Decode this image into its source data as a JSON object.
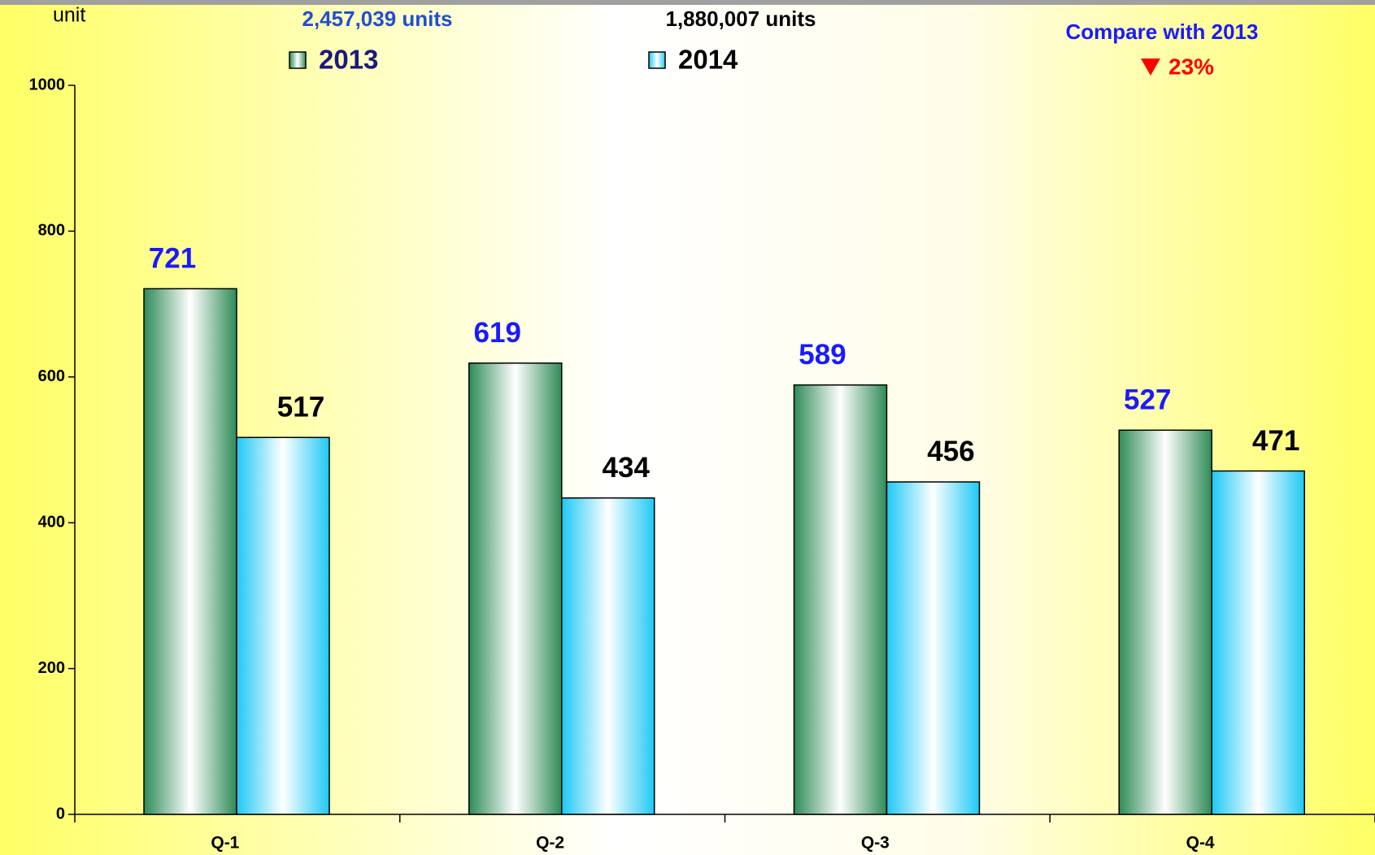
{
  "chart_data": {
    "type": "bar",
    "y_axis_label": "unit",
    "categories": [
      "Q-1",
      "Q-2",
      "Q-3",
      "Q-4"
    ],
    "series": [
      {
        "name": "2013",
        "color": "#2e8b57",
        "label_color": "#1a1aff",
        "total_label": "2,457,039 units",
        "total_color": "#1f4fd0",
        "values": [
          721,
          619,
          589,
          527
        ]
      },
      {
        "name": "2014",
        "color": "#1ec8f5",
        "label_color": "#000000",
        "total_label": "1,880,007 units",
        "total_color": "#000000",
        "values": [
          517,
          434,
          456,
          471
        ]
      }
    ],
    "comparison": {
      "text": "Compare with  2013",
      "change": {
        "value": 23,
        "label": "23%"
      },
      "direction": "down"
    },
    "ylim": [
      0,
      1000
    ],
    "yticks": [
      0,
      200,
      400,
      600,
      800,
      1000
    ],
    "grid": false
  }
}
